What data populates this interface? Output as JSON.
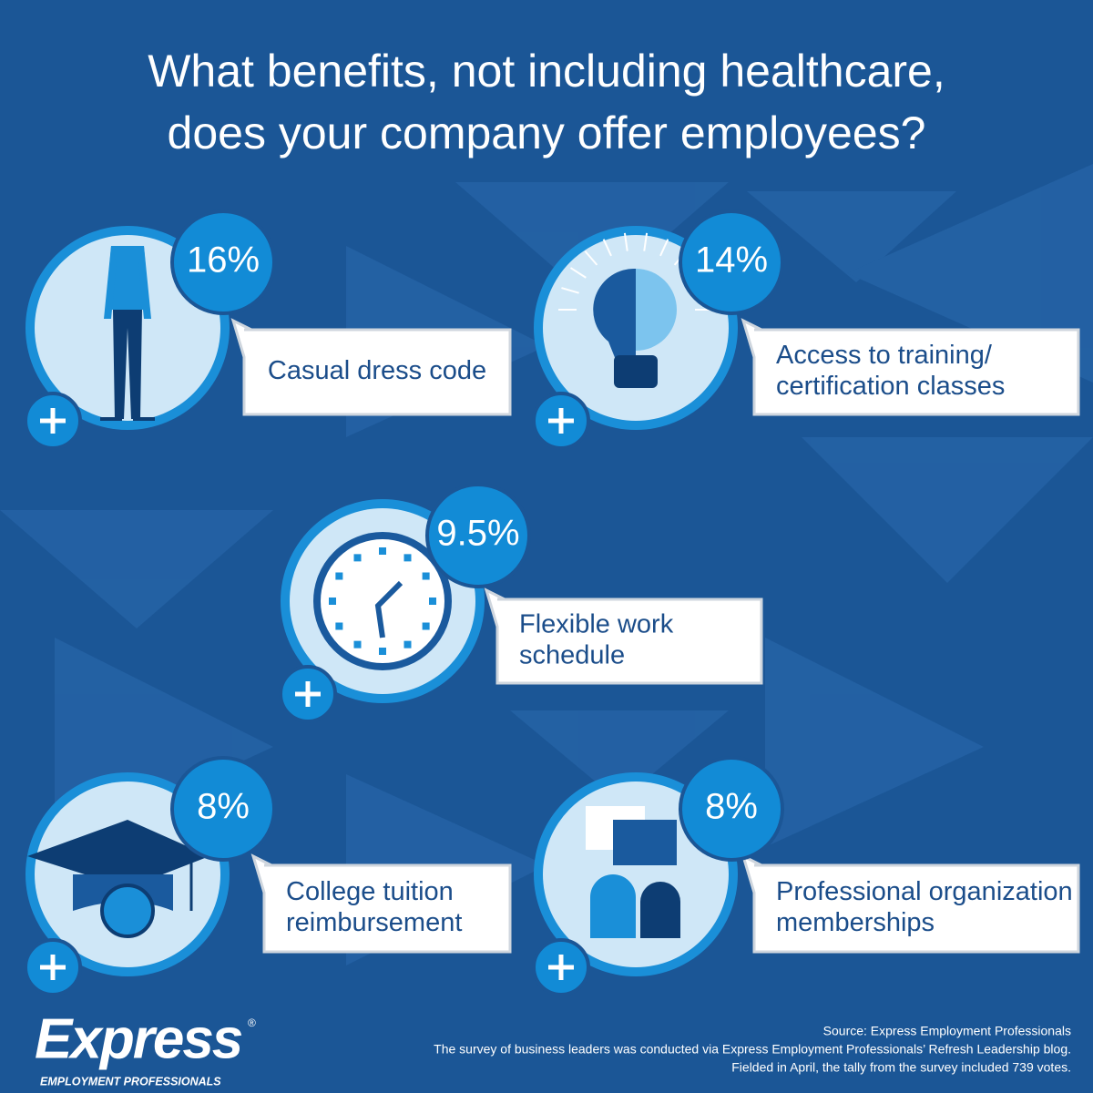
{
  "title": [
    "What benefits, not including healthcare,",
    "does your company offer employees?"
  ],
  "items": [
    {
      "percent": "16%",
      "label": [
        "Casual dress code"
      ]
    },
    {
      "percent": "14%",
      "label": [
        "Access to training/",
        "certification classes"
      ]
    },
    {
      "percent": "9.5%",
      "label": [
        "Flexible work",
        "schedule"
      ]
    },
    {
      "percent": "8%",
      "label": [
        "College tuition",
        "reimbursement"
      ]
    },
    {
      "percent": "8%",
      "label": [
        "Professional organization",
        "memberships"
      ]
    }
  ],
  "logo": {
    "name": "Express",
    "mark": "®",
    "tagline": "EMPLOYMENT PROFESSIONALS"
  },
  "source": [
    "Source: Express Employment Professionals",
    "The survey of business leaders was conducted via Express Employment Professionals’ Refresh Leadership blog.",
    "Fielded in April, the tally from the survey included 739 votes."
  ]
}
